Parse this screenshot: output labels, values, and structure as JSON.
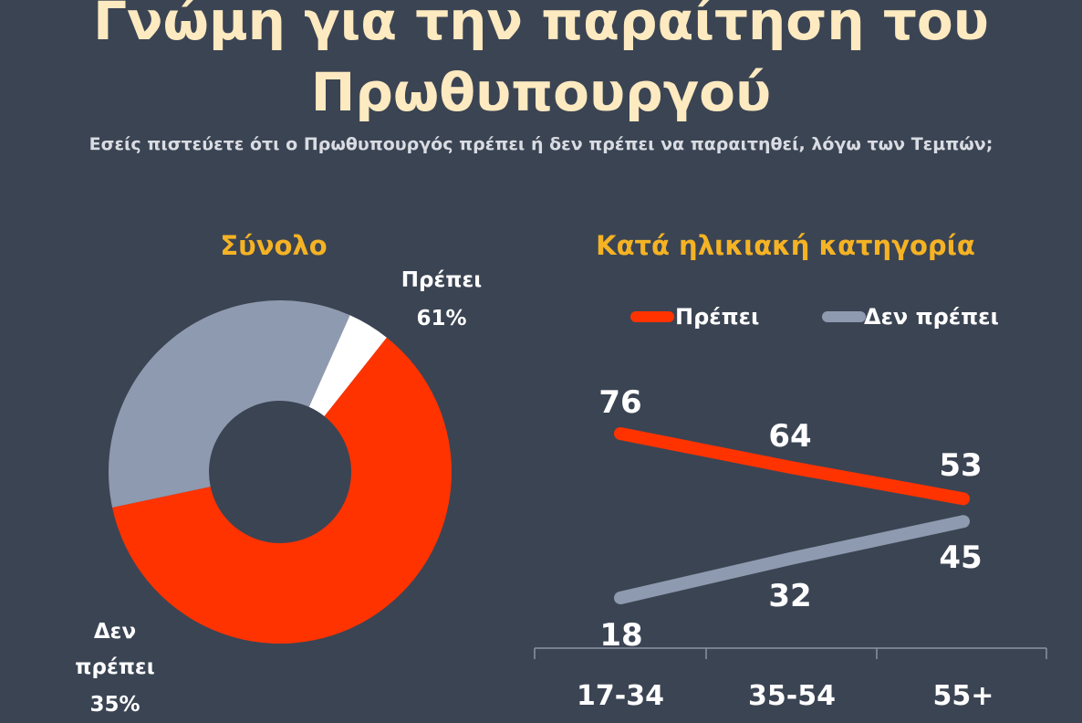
{
  "title_line1": "Γνώμη για την παραίτηση του",
  "title_line2": "Πρωθυπουργού",
  "subtitle": "Εσείς πιστεύετε ότι ο Πρωθυπουργός πρέπει ή δεν πρέπει να παραιτηθεί, λόγω των Τεμπών;",
  "colors": {
    "background": "#3b4453",
    "title": "#fdeac0",
    "section_title": "#f5b324",
    "should": "#ff3300",
    "should_not": "#8e9aaf",
    "other": "#ffffff"
  },
  "chart_data": [
    {
      "type": "pie",
      "title": "Σύνολο",
      "slices": [
        {
          "name": "Πρέπει",
          "value": 61,
          "label_line1": "Πρέπει",
          "label_line2": "61%",
          "color": "#ff3300"
        },
        {
          "name": "Δεν πρέπει",
          "value": 35,
          "label_line1": "Δεν",
          "label_line2": "πρέπει",
          "label_line3": "35%",
          "color": "#8e9aaf"
        },
        {
          "name": "",
          "value": 4,
          "color": "#ffffff"
        }
      ]
    },
    {
      "type": "line",
      "title": "Κατά ηλικιακή κατηγορία",
      "categories": [
        "17-34",
        "35-54",
        "55+"
      ],
      "series": [
        {
          "name": "Πρέπει",
          "values": [
            76,
            64,
            53
          ],
          "color": "#ff3300"
        },
        {
          "name": "Δεν πρέπει",
          "values": [
            18,
            32,
            45
          ],
          "color": "#8e9aaf"
        }
      ],
      "legend_position": "top"
    }
  ]
}
